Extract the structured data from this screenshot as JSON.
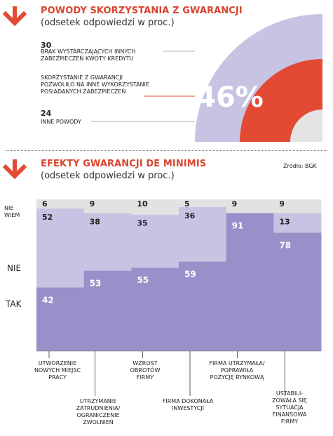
{
  "chart_data": [
    {
      "type": "pie",
      "title": "POWODY SKORZYSTANIA Z GWARANCJI",
      "subtitle": "(odsetek odpowiedzi w proc.)",
      "slices": [
        {
          "value": 30,
          "label": "BRAK WYSTARCZAJĄCYCH INNYCH ZABEZPIECZEŃ KWOTY KREDYTU",
          "color": "#c7c3e2"
        },
        {
          "value": 46,
          "label": "SKORZYSTANIE Z GWARANCJI POZWOLIŁO NA INNE WYKORZYSTANIE POSIADANYCH ZABEZPIECZEŃ",
          "color": "#e34a33",
          "display": "46%"
        },
        {
          "value": 24,
          "label": "INNE POWODY",
          "color": "#e4e4e4"
        }
      ]
    },
    {
      "type": "bar",
      "stacked": true,
      "title": "EFEKTY GWARANCJI DE MINIMIS",
      "subtitle": "(odsetek odpowiedzi w proc.)",
      "source": "Źródło: BGK",
      "categories": [
        "UTWORZENIE NOWYCH MIEJSC PRACY",
        "UTRZYMANIE ZATRUDNIENIA/ OGRANICZENIE ZWOLNIEŃ",
        "WZROST OBROTÓW FIRMY",
        "FIRMA DOKONAŁA INWESTYCJI",
        "FIRMA UTRZYMAŁA/ POPRAWIŁA POZYCJĘ RYNKOWĄ",
        "USTABILI- ZOWAŁA SIĘ SYTUACJA FINANSOWA FIRMY"
      ],
      "series": [
        {
          "name": "TAK",
          "values": [
            42,
            53,
            55,
            59,
            91,
            78
          ],
          "color": "#9a90c9"
        },
        {
          "name": "NIE",
          "values": [
            52,
            38,
            35,
            36,
            null,
            13
          ],
          "color": "#c7c3e2"
        },
        {
          "name": "NIE WIEM",
          "values": [
            6,
            9,
            10,
            5,
            9,
            9
          ],
          "color": "#e2e2e2"
        }
      ],
      "ylim": [
        0,
        100
      ]
    }
  ]
}
